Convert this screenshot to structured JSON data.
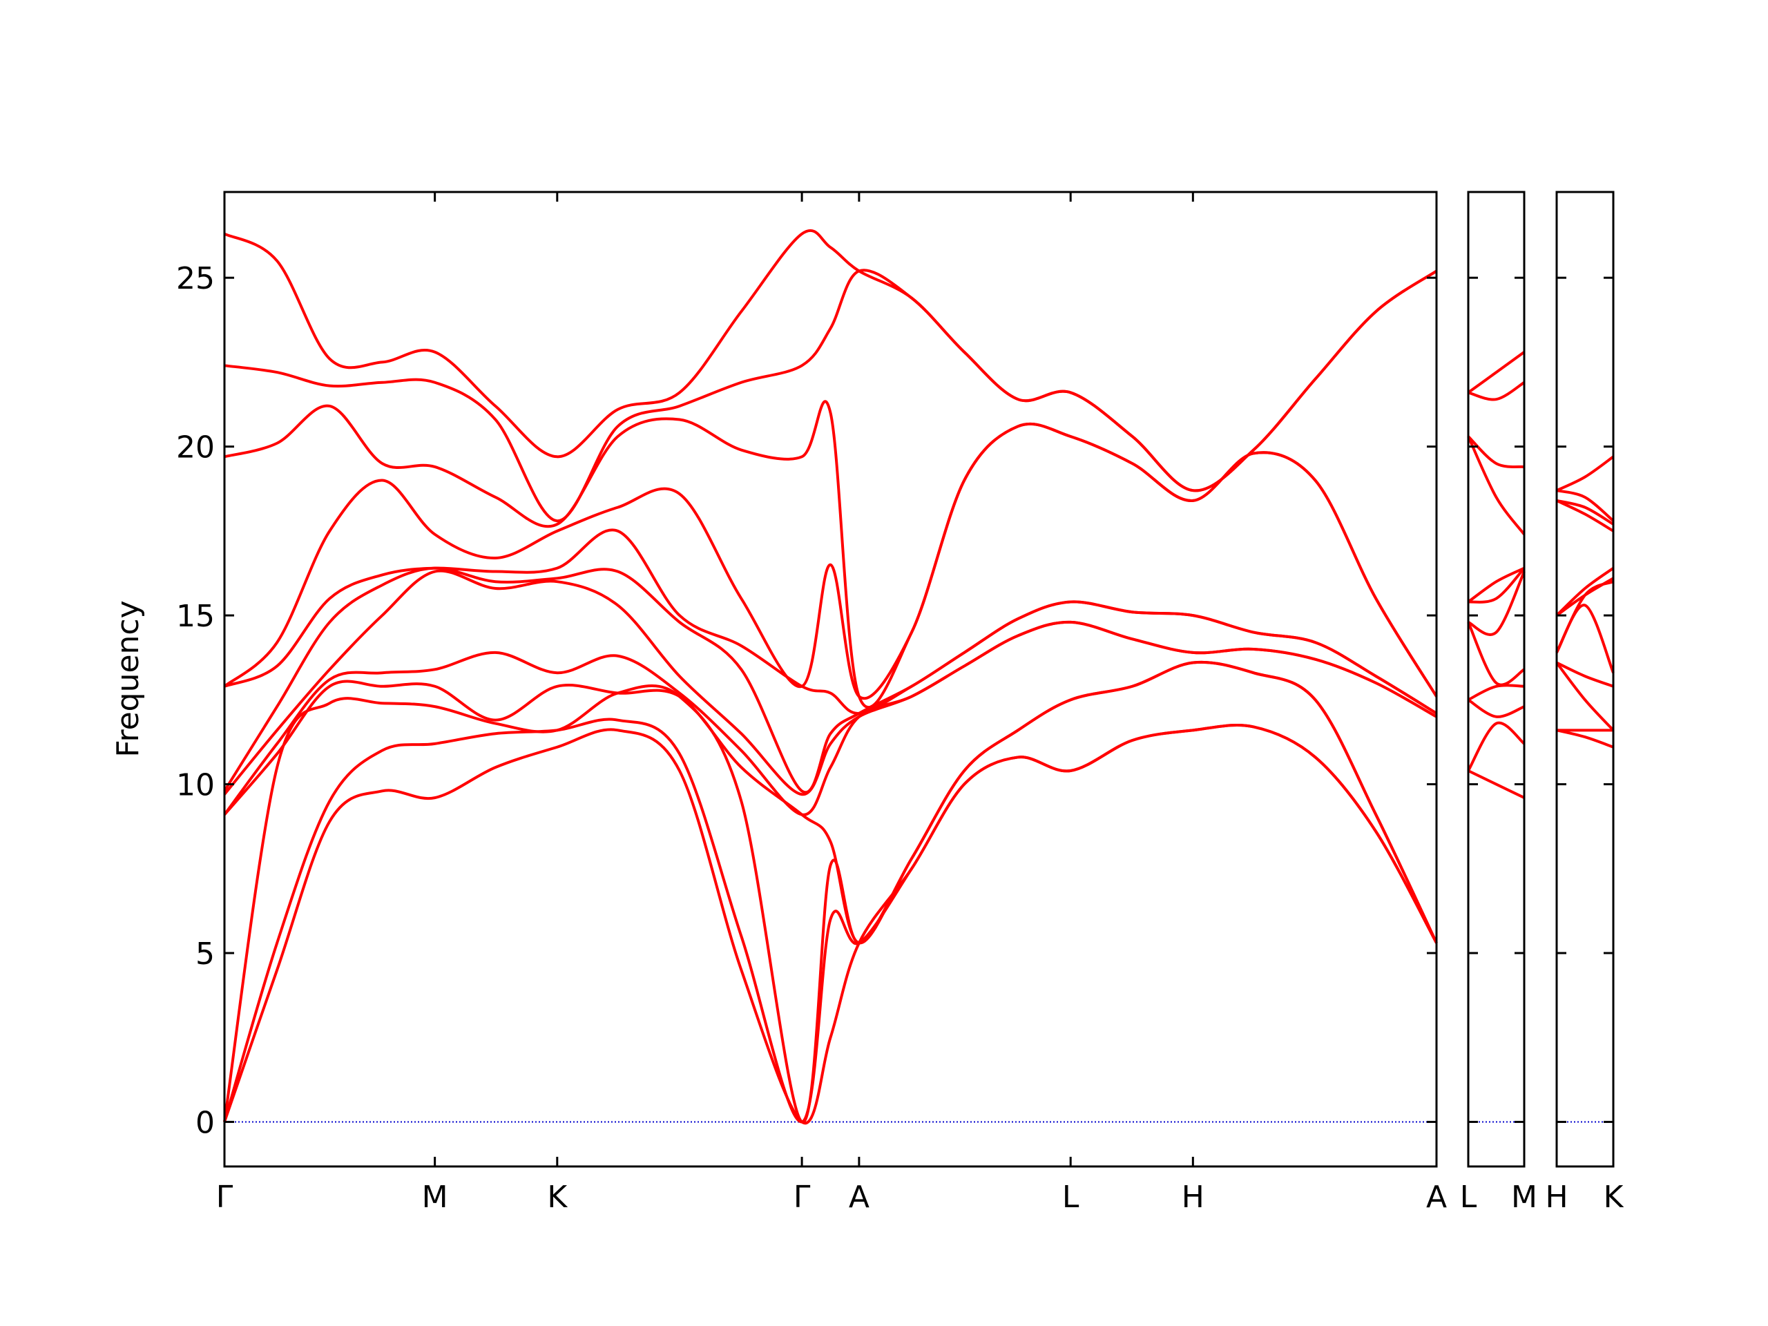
{
  "chart_data": [
    {
      "type": "line",
      "ylabel": "Frequency",
      "ylim": [
        -1.32,
        27.54
      ],
      "yticks": [
        0,
        5,
        10,
        15,
        20,
        25
      ],
      "xlim": [
        0,
        1.06
      ],
      "xticks": [
        {
          "value": 0,
          "label": "Γ"
        },
        {
          "value": 0.184,
          "label": "M"
        },
        {
          "value": 0.291,
          "label": "K"
        },
        {
          "value": 0.505,
          "label": "Γ"
        },
        {
          "value": 0.555,
          "label": "A"
        },
        {
          "value": 0.74,
          "label": "L"
        },
        {
          "value": 0.847,
          "label": "H"
        },
        {
          "value": 1.06,
          "label": "A"
        }
      ],
      "x": [
        0,
        0.046,
        0.092,
        0.138,
        0.184,
        0.237,
        0.291,
        0.344,
        0.398,
        0.452,
        0.505,
        0.53,
        0.555,
        0.601,
        0.647,
        0.694,
        0.74,
        0.794,
        0.847,
        0.9,
        0.954,
        1.007,
        1.06
      ],
      "series": [
        {
          "color": "#ff0000",
          "values": [
            0,
            4.5,
            8.9,
            9.8,
            9.6,
            10.5,
            11.1,
            11.6,
            10.4,
            4.5,
            0,
            2.5,
            5.3,
            7.5,
            10.0,
            10.8,
            10.4,
            11.3,
            11.6,
            11.7,
            10.8,
            8.6,
            5.3
          ]
        },
        {
          "color": "#ff0000",
          "values": [
            0,
            5.3,
            9.5,
            11.0,
            11.2,
            11.5,
            11.6,
            11.9,
            10.9,
            5.5,
            0,
            6.0,
            5.3,
            7.5,
            10.0,
            10.8,
            10.4,
            11.3,
            11.6,
            11.7,
            10.8,
            8.6,
            5.3
          ]
        },
        {
          "color": "#ff0000",
          "values": [
            0,
            10.5,
            12.4,
            12.4,
            12.3,
            11.8,
            11.6,
            12.7,
            12.6,
            9.5,
            0,
            7.6,
            5.3,
            7.8,
            10.4,
            11.6,
            12.5,
            12.9,
            13.6,
            13.3,
            12.5,
            9.1,
            5.3
          ]
        },
        {
          "color": "#ff0000",
          "values": [
            9.1,
            10.9,
            12.9,
            12.9,
            12.9,
            11.9,
            12.9,
            12.7,
            12.6,
            10.5,
            9.1,
            8.3,
            5.3,
            7.8,
            10.4,
            11.6,
            12.5,
            12.9,
            13.6,
            13.3,
            12.5,
            9.1,
            5.3
          ]
        },
        {
          "color": "#ff0000",
          "values": [
            9.1,
            11.2,
            13.1,
            13.3,
            13.4,
            13.9,
            13.3,
            13.8,
            12.7,
            11.0,
            9.1,
            10.5,
            12.0,
            12.6,
            13.5,
            14.4,
            14.8,
            14.3,
            13.9,
            14.0,
            13.7,
            13.0,
            12.0
          ]
        },
        {
          "color": "#ff0000",
          "values": [
            9.7,
            11.6,
            13.4,
            15.0,
            16.3,
            15.8,
            16.0,
            15.3,
            13.2,
            11.5,
            9.7,
            11.2,
            12.0,
            12.6,
            13.5,
            14.4,
            14.8,
            14.3,
            13.9,
            14.0,
            13.7,
            13.0,
            12.0
          ]
        },
        {
          "color": "#ff0000",
          "values": [
            9.8,
            12.3,
            14.8,
            15.9,
            16.4,
            16.0,
            16.1,
            16.3,
            14.8,
            13.4,
            9.8,
            11.5,
            12.1,
            12.9,
            13.9,
            14.9,
            15.4,
            15.1,
            15.0,
            14.5,
            14.2,
            13.2,
            12.1
          ]
        },
        {
          "color": "#ff0000",
          "values": [
            12.9,
            13.5,
            15.5,
            16.2,
            16.4,
            16.3,
            16.4,
            17.5,
            15.0,
            14.1,
            12.9,
            12.7,
            12.1,
            12.9,
            13.9,
            14.9,
            15.4,
            15.1,
            15.0,
            14.5,
            14.2,
            13.2,
            12.1
          ]
        },
        {
          "color": "#ff0000",
          "values": [
            12.9,
            14.2,
            17.5,
            19.0,
            17.4,
            16.7,
            17.5,
            18.2,
            18.6,
            15.5,
            12.9,
            16.5,
            12.6,
            14.5,
            19.0,
            20.6,
            20.3,
            19.5,
            18.4,
            19.8,
            19.0,
            15.5,
            12.6
          ]
        },
        {
          "color": "#ff0000",
          "values": [
            19.7,
            20.1,
            21.2,
            19.5,
            19.4,
            18.5,
            17.7,
            20.3,
            20.8,
            19.9,
            19.7,
            21.0,
            12.6,
            14.5,
            19.0,
            20.6,
            20.3,
            19.5,
            18.4,
            19.8,
            19.0,
            15.5,
            12.6
          ]
        },
        {
          "color": "#ff0000",
          "values": [
            22.4,
            22.2,
            21.8,
            21.9,
            21.9,
            20.8,
            17.8,
            20.6,
            21.2,
            21.9,
            22.4,
            23.5,
            25.2,
            24.4,
            22.8,
            21.4,
            21.6,
            20.3,
            18.7,
            19.9,
            22.0,
            24.0,
            25.2
          ]
        },
        {
          "color": "#ff0000",
          "values": [
            26.3,
            25.5,
            22.6,
            22.5,
            22.8,
            21.2,
            19.7,
            21.1,
            21.6,
            24.0,
            26.3,
            25.9,
            25.2,
            24.4,
            22.8,
            21.4,
            21.6,
            20.3,
            18.7,
            19.9,
            22.0,
            24.0,
            25.2
          ]
        }
      ]
    },
    {
      "type": "line",
      "ylim": [
        -1.32,
        27.54
      ],
      "xlim": [
        0,
        0.049
      ],
      "xticks": [
        {
          "value": 0,
          "label": "L"
        },
        {
          "value": 0.049,
          "label": "M"
        }
      ],
      "x": [
        0,
        0.0245,
        0.049
      ],
      "series": [
        {
          "color": "#ff0000",
          "values": [
            10.4,
            10.0,
            9.6
          ]
        },
        {
          "color": "#ff0000",
          "values": [
            10.4,
            11.8,
            11.2
          ]
        },
        {
          "color": "#ff0000",
          "values": [
            12.5,
            12.0,
            12.3
          ]
        },
        {
          "color": "#ff0000",
          "values": [
            12.5,
            12.9,
            12.9
          ]
        },
        {
          "color": "#ff0000",
          "values": [
            14.8,
            13.0,
            13.4
          ]
        },
        {
          "color": "#ff0000",
          "values": [
            14.8,
            14.5,
            16.3
          ]
        },
        {
          "color": "#ff0000",
          "values": [
            15.4,
            15.5,
            16.4
          ]
        },
        {
          "color": "#ff0000",
          "values": [
            15.4,
            16.0,
            16.4
          ]
        },
        {
          "color": "#ff0000",
          "values": [
            20.3,
            18.5,
            17.4
          ]
        },
        {
          "color": "#ff0000",
          "values": [
            20.3,
            19.5,
            19.4
          ]
        },
        {
          "color": "#ff0000",
          "values": [
            21.6,
            21.4,
            21.9
          ]
        },
        {
          "color": "#ff0000",
          "values": [
            21.6,
            22.2,
            22.8
          ]
        }
      ]
    },
    {
      "type": "line",
      "ylim": [
        -1.32,
        27.54
      ],
      "xlim": [
        0,
        0.05
      ],
      "xticks": [
        {
          "value": 0,
          "label": "H"
        },
        {
          "value": 0.05,
          "label": "K"
        }
      ],
      "x": [
        0,
        0.025,
        0.05
      ],
      "series": [
        {
          "color": "#ff0000",
          "values": [
            11.6,
            11.4,
            11.1
          ]
        },
        {
          "color": "#ff0000",
          "values": [
            11.6,
            11.6,
            11.6
          ]
        },
        {
          "color": "#ff0000",
          "values": [
            13.6,
            12.5,
            11.6
          ]
        },
        {
          "color": "#ff0000",
          "values": [
            13.6,
            13.2,
            12.9
          ]
        },
        {
          "color": "#ff0000",
          "values": [
            13.9,
            15.3,
            13.3
          ]
        },
        {
          "color": "#ff0000",
          "values": [
            13.9,
            15.6,
            16.0
          ]
        },
        {
          "color": "#ff0000",
          "values": [
            15.0,
            15.6,
            16.1
          ]
        },
        {
          "color": "#ff0000",
          "values": [
            15.0,
            15.8,
            16.4
          ]
        },
        {
          "color": "#ff0000",
          "values": [
            18.4,
            18.0,
            17.5
          ]
        },
        {
          "color": "#ff0000",
          "values": [
            18.4,
            18.2,
            17.7
          ]
        },
        {
          "color": "#ff0000",
          "values": [
            18.7,
            18.5,
            17.8
          ]
        },
        {
          "color": "#ff0000",
          "values": [
            18.7,
            19.1,
            19.7
          ]
        }
      ]
    }
  ]
}
